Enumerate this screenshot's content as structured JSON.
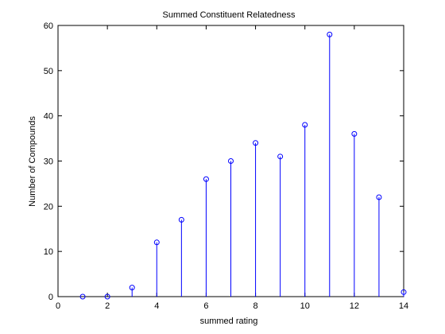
{
  "chart_data": {
    "type": "stem",
    "title": "Summed Constituent Relatedness",
    "xlabel": "summed rating",
    "ylabel": "Number of Compounds",
    "xlim": [
      0,
      14
    ],
    "ylim": [
      0,
      60
    ],
    "xticks": [
      0,
      2,
      4,
      6,
      8,
      10,
      12,
      14
    ],
    "yticks": [
      0,
      10,
      20,
      30,
      40,
      50,
      60
    ],
    "grid": false,
    "marker": "circle",
    "series": [
      {
        "x": [
          1,
          2,
          3,
          4,
          5,
          6,
          7,
          8,
          9,
          10,
          11,
          12,
          13,
          14
        ],
        "values": [
          0,
          0,
          2,
          12,
          17,
          26,
          30,
          34,
          31,
          38,
          58,
          36,
          22,
          1
        ]
      }
    ],
    "colors": {
      "stem": "#0000ff",
      "axes": "#000000",
      "background": "#ffffff"
    }
  }
}
